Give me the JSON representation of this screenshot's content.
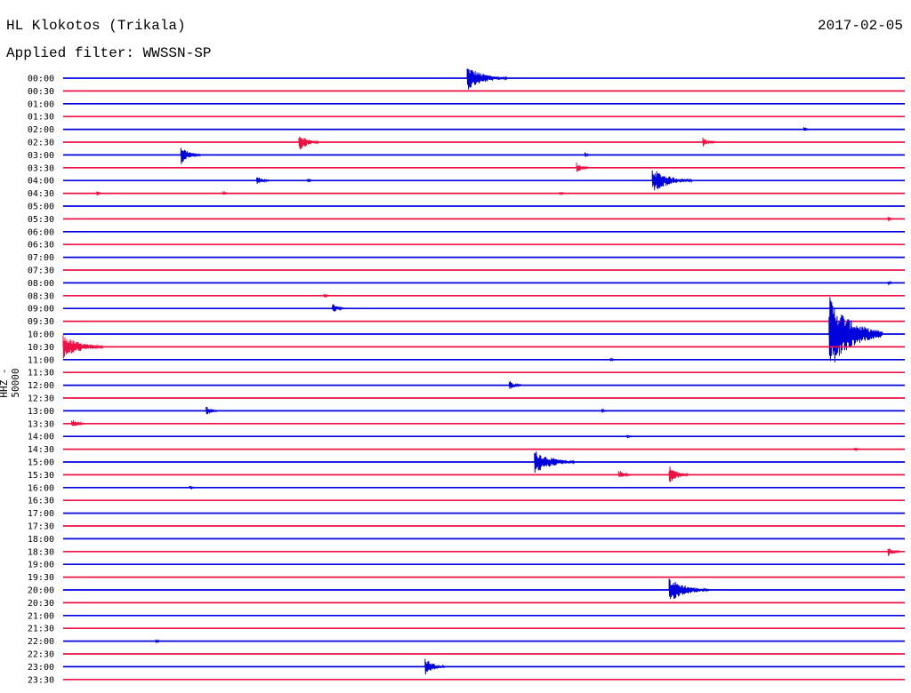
{
  "header": {
    "station": "HL Klokotos (Trikala)",
    "date": "2017-02-05",
    "filter": "Applied filter: WWSSN-SP"
  },
  "chart_data": {
    "type": "helicorder",
    "ylabel": "HHZ - 50000",
    "colors": {
      "odd": "#0000dd",
      "even": "#ee1144"
    },
    "rows": [
      {
        "time": "00:00",
        "events": [
          [
            0.48,
            "large"
          ]
        ]
      },
      {
        "time": "00:30",
        "events": []
      },
      {
        "time": "01:00",
        "events": []
      },
      {
        "time": "01:30",
        "events": []
      },
      {
        "time": "02:00",
        "events": [
          [
            0.88,
            "tiny"
          ]
        ]
      },
      {
        "time": "02:30",
        "events": [
          [
            0.28,
            "medium"
          ],
          [
            0.76,
            "small"
          ]
        ]
      },
      {
        "time": "03:00",
        "events": [
          [
            0.14,
            "medium"
          ],
          [
            0.62,
            "tiny"
          ]
        ]
      },
      {
        "time": "03:30",
        "events": [
          [
            0.61,
            "small"
          ]
        ]
      },
      {
        "time": "04:00",
        "events": [
          [
            0.23,
            "small"
          ],
          [
            0.29,
            "tiny"
          ],
          [
            0.7,
            "large"
          ]
        ]
      },
      {
        "time": "04:30",
        "events": [
          [
            0.04,
            "tiny"
          ],
          [
            0.19,
            "tiny"
          ],
          [
            0.59,
            "tiny"
          ]
        ]
      },
      {
        "time": "05:00",
        "events": []
      },
      {
        "time": "05:30",
        "events": [
          [
            0.98,
            "tiny"
          ]
        ]
      },
      {
        "time": "06:00",
        "events": []
      },
      {
        "time": "06:30",
        "events": []
      },
      {
        "time": "07:00",
        "events": []
      },
      {
        "time": "07:30",
        "events": []
      },
      {
        "time": "08:00",
        "events": [
          [
            0.98,
            "tiny"
          ]
        ]
      },
      {
        "time": "08:30",
        "events": [
          [
            0.31,
            "tiny"
          ]
        ]
      },
      {
        "time": "09:00",
        "events": [
          [
            0.32,
            "small"
          ]
        ]
      },
      {
        "time": "09:30",
        "events": []
      },
      {
        "time": "10:00",
        "events": [
          [
            0.91,
            "huge"
          ]
        ]
      },
      {
        "time": "10:30",
        "events": [
          [
            0.0,
            "large"
          ]
        ]
      },
      {
        "time": "11:00",
        "events": [
          [
            0.65,
            "tiny"
          ]
        ]
      },
      {
        "time": "11:30",
        "events": []
      },
      {
        "time": "12:00",
        "events": [
          [
            0.53,
            "small"
          ]
        ]
      },
      {
        "time": "12:30",
        "events": []
      },
      {
        "time": "13:00",
        "events": [
          [
            0.17,
            "small"
          ],
          [
            0.64,
            "tiny"
          ]
        ]
      },
      {
        "time": "13:30",
        "events": [
          [
            0.01,
            "small"
          ]
        ]
      },
      {
        "time": "14:00",
        "events": [
          [
            0.67,
            "tiny"
          ]
        ]
      },
      {
        "time": "14:30",
        "events": [
          [
            0.94,
            "tiny"
          ]
        ]
      },
      {
        "time": "15:00",
        "events": [
          [
            0.56,
            "large"
          ]
        ]
      },
      {
        "time": "15:30",
        "events": [
          [
            0.66,
            "small"
          ],
          [
            0.72,
            "medium"
          ]
        ]
      },
      {
        "time": "16:00",
        "events": [
          [
            0.15,
            "tiny"
          ]
        ]
      },
      {
        "time": "16:30",
        "events": []
      },
      {
        "time": "17:00",
        "events": []
      },
      {
        "time": "17:30",
        "events": []
      },
      {
        "time": "18:00",
        "events": []
      },
      {
        "time": "18:30",
        "events": [
          [
            0.98,
            "small"
          ]
        ]
      },
      {
        "time": "19:00",
        "events": []
      },
      {
        "time": "19:30",
        "events": []
      },
      {
        "time": "20:00",
        "events": [
          [
            0.72,
            "large"
          ]
        ]
      },
      {
        "time": "20:30",
        "events": []
      },
      {
        "time": "21:00",
        "events": []
      },
      {
        "time": "21:30",
        "events": []
      },
      {
        "time": "22:00",
        "events": [
          [
            0.11,
            "tiny"
          ]
        ]
      },
      {
        "time": "22:30",
        "events": []
      },
      {
        "time": "23:00",
        "events": [
          [
            0.43,
            "medium"
          ]
        ]
      },
      {
        "time": "23:30",
        "events": []
      }
    ]
  }
}
